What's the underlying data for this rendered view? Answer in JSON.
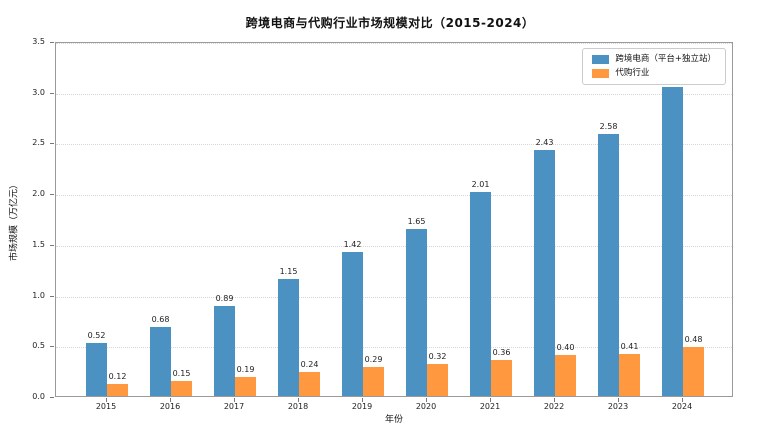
{
  "chart_data": {
    "type": "bar",
    "title": "跨境电商与代购行业市场规模对比（2015-2024）",
    "xlabel": "年份",
    "ylabel": "市场规模（万亿元）",
    "categories": [
      "2015",
      "2016",
      "2017",
      "2018",
      "2019",
      "2020",
      "2021",
      "2022",
      "2023",
      "2024"
    ],
    "series": [
      {
        "name": "跨境电商（平台+独立站）",
        "color": "#4B92C3",
        "values": [
          0.52,
          0.68,
          0.89,
          1.15,
          1.42,
          1.65,
          2.01,
          2.43,
          2.58,
          3.05
        ]
      },
      {
        "name": "代购行业",
        "color": "#FF983E",
        "values": [
          0.12,
          0.15,
          0.19,
          0.24,
          0.29,
          0.32,
          0.36,
          0.4,
          0.41,
          0.48
        ]
      }
    ],
    "ylim": [
      0,
      3.5
    ],
    "yticks": [
      "0.0",
      "0.5",
      "1.0",
      "1.5",
      "2.0",
      "2.5",
      "3.0",
      "3.5"
    ],
    "value_label_decimals": 2,
    "grid": "horizontal-dotted",
    "legend_position": "top-right-inside",
    "frame_color": "#9a9a9a",
    "grid_color": "#d8d8d8"
  }
}
